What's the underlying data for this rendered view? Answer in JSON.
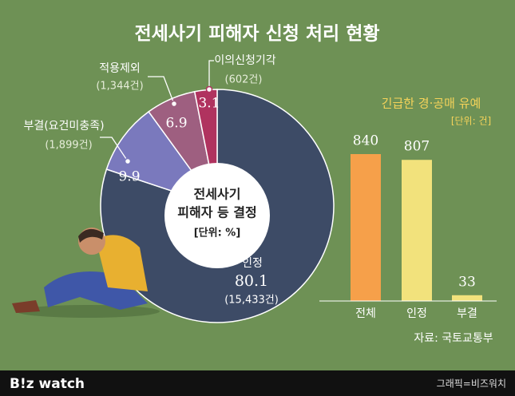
{
  "header": {
    "title": "전세사기 피해자 신청 처리 현황"
  },
  "chart_data": [
    {
      "type": "donut",
      "center_title": [
        "전세사기",
        "피해자 등 결정"
      ],
      "unit_label": "[단위: %]",
      "categories": [
        "인정",
        "부결(요건미충족)",
        "적용제외",
        "이의신청기각"
      ],
      "values": [
        80.1,
        9.9,
        6.9,
        3.1
      ],
      "count_labels": [
        "(15,433건)",
        "(1,899건)",
        "(1,344건)",
        "(602건)"
      ],
      "colors": [
        "#3d4b66",
        "#7a79bd",
        "#9e5f80",
        "#b0335f"
      ]
    },
    {
      "type": "bar",
      "title": "긴급한 경·공매 유예",
      "unit_label": "[단위: 건]",
      "categories": [
        "전체",
        "인정",
        "부결"
      ],
      "values": [
        840,
        807,
        33
      ],
      "colors": [
        "#f6a04a",
        "#f2e27c",
        "#f2e27c"
      ]
    }
  ],
  "footer": {
    "source": "자료: 국토교통부",
    "brand": "B!z watch",
    "credit": "그래픽=비즈워치"
  }
}
